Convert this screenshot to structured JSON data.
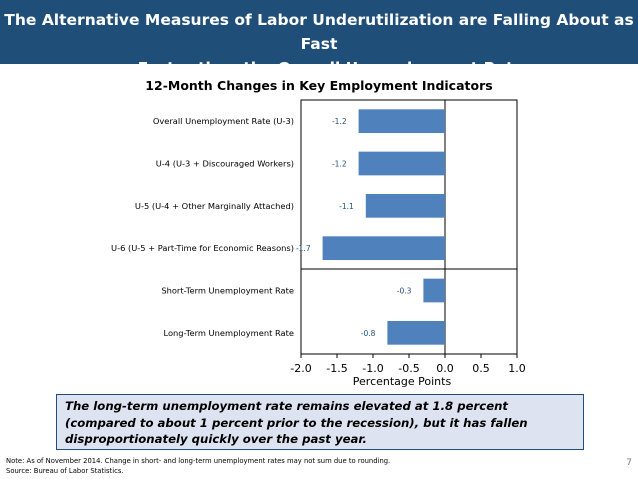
{
  "header": {
    "title_line1": "The Alternative Measures of Labor Underutilization are Falling About as Fast",
    "title_line2": "or Faster than the Overall Unemployment Rate"
  },
  "chart_data": {
    "type": "bar",
    "orientation": "horizontal",
    "title": "12-Month Changes in Key Employment Indicators",
    "xlabel": "Percentage Points",
    "ylabel": "",
    "xlim": [
      -2.0,
      1.0
    ],
    "x_ticks": [
      "-2.0",
      "-1.5",
      "-1.0",
      "-0.5",
      "0.0",
      "0.5",
      "1.0"
    ],
    "categories": [
      "Overall Unemployment Rate (U-3)",
      "U-4 (U-3 + Discouraged Workers)",
      "U-5 (U-4 + Other Marginally Attached)",
      "U-6 (U-5 + Part-Time for Economic Reasons)",
      "Short-Term Unemployment Rate",
      "Long-Term Unemployment Rate"
    ],
    "values": [
      -1.2,
      -1.2,
      -1.1,
      -1.7,
      -0.3,
      -0.8
    ],
    "value_labels": [
      "-1.2",
      "-1.2",
      "-1.1",
      "-1.7",
      "-0.3",
      "-0.8"
    ],
    "bar_color": "#4f81bd",
    "grid": false
  },
  "callout": {
    "text": "The long-term unemployment rate remains elevated at 1.8 percent (compared to about 1 percent prior to the recession), but it has fallen disproportionately quickly over the past year."
  },
  "notes": {
    "note": "Note: As of November 2014. Change in short- and long-term unemployment rates may not sum due to rounding.",
    "source": "Source: Bureau of Labor Statistics."
  },
  "page_number": "7",
  "colors": {
    "header_bg": "#1f4e79",
    "header_text": "#ffffff",
    "callout_bg": "#dde3f0",
    "callout_border": "#1f4e79"
  }
}
